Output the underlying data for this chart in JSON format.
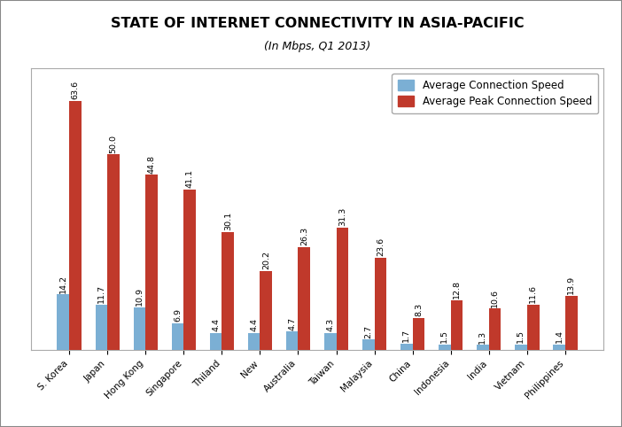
{
  "title": "STATE OF INTERNET CONNECTIVITY IN ASIA-PACIFIC",
  "subtitle": "(In Mbps, Q1 2013)",
  "categories": [
    "S. Korea",
    "Japan",
    "Hong Kong",
    "Singapore",
    "Thiland",
    "New",
    "Australia",
    "Taiwan",
    "Malaysia",
    "China",
    "Indonesia",
    "India",
    "Vietnam",
    "Philippines"
  ],
  "avg_speed": [
    14.2,
    11.7,
    10.9,
    6.9,
    4.4,
    4.4,
    4.7,
    4.3,
    2.7,
    1.7,
    1.5,
    1.3,
    1.5,
    1.4
  ],
  "peak_speed": [
    63.6,
    50.0,
    44.8,
    41.1,
    30.1,
    20.2,
    26.3,
    31.3,
    23.6,
    8.3,
    12.8,
    10.6,
    11.6,
    13.9
  ],
  "avg_color": "#7BAFD4",
  "peak_color": "#C0392B",
  "legend_avg": "Average Connection Speed",
  "legend_peak": "Average Peak Connection Speed",
  "bar_width": 0.32,
  "ylim": [
    0,
    72
  ],
  "title_fontsize": 11.5,
  "subtitle_fontsize": 9,
  "label_fontsize": 6.8,
  "tick_fontsize": 7.5,
  "legend_fontsize": 8.5,
  "background_color": "#FFFFFF",
  "border_color": "#AAAAAA"
}
